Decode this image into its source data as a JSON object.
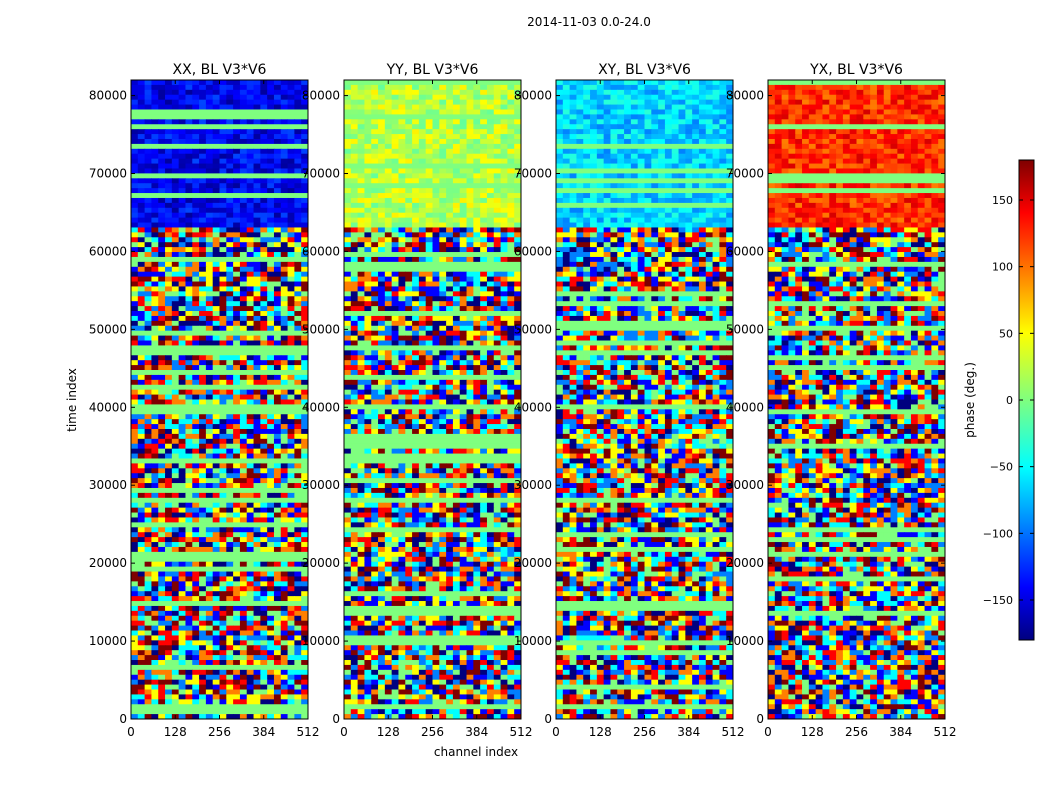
{
  "figure_title": "2014-11-03 0.0-24.0",
  "colors": {
    "background": "#ffffff",
    "noise_palette": [
      "#00007f",
      "#0000ff",
      "#007fff",
      "#00ffff",
      "#7fff7f",
      "#ffff00",
      "#ff7f00",
      "#ff0000",
      "#7f0000"
    ],
    "flag_green": "#7fff7f"
  },
  "chart_data": {
    "type": "heatmap",
    "xlabel": "channel index",
    "ylabel": "time index",
    "xlim": [
      0,
      512
    ],
    "ylim": [
      0,
      82000
    ],
    "x_ticks": [
      0,
      128,
      256,
      384,
      512
    ],
    "y_ticks": [
      0,
      10000,
      20000,
      30000,
      40000,
      50000,
      60000,
      70000,
      80000
    ],
    "panels": [
      {
        "title": "XX, BL V3*V6",
        "pol": "XX",
        "upper_mean_phase": -140
      },
      {
        "title": "YY, BL V3*V6",
        "pol": "YY",
        "upper_mean_phase": 20
      },
      {
        "title": "XY, BL V3*V6",
        "pol": "XY",
        "upper_mean_phase": -60
      },
      {
        "title": "YX, BL V3*V6",
        "pol": "YX",
        "upper_mean_phase": 120
      }
    ],
    "colorbar": {
      "label": "phase (deg.)",
      "min": -180,
      "max": 180,
      "ticks": [
        150,
        100,
        50,
        0,
        -50,
        -100,
        -150
      ],
      "tick_labels": [
        "150",
        "100",
        "50",
        "0",
        "−50",
        "−100",
        "−150"
      ],
      "colormap": "jet"
    }
  }
}
